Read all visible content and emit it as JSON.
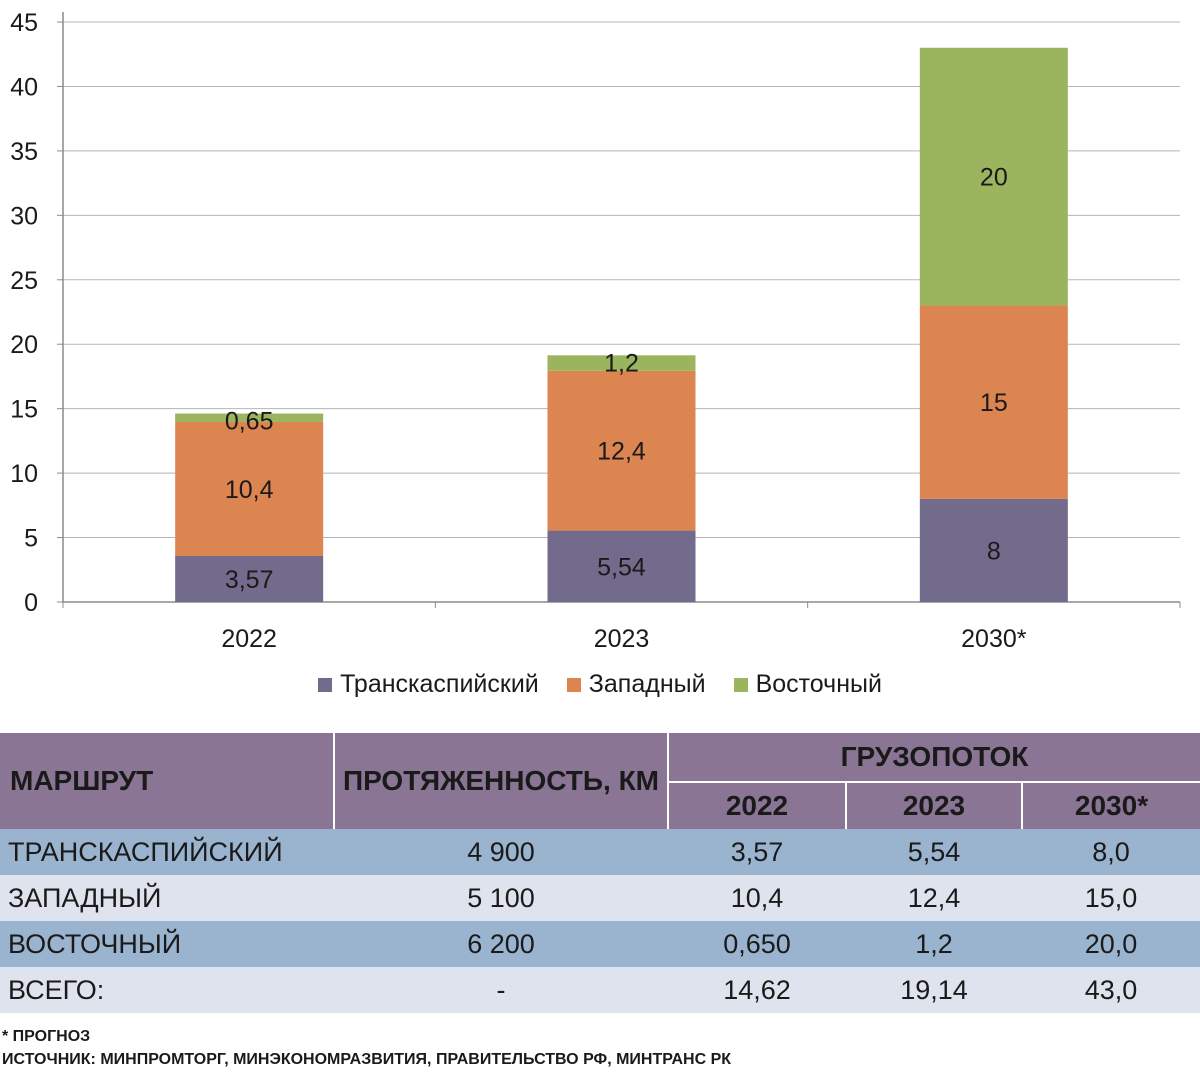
{
  "chart_data": {
    "type": "bar",
    "stacked": true,
    "categories": [
      "2022",
      "2023",
      "2030*"
    ],
    "series": [
      {
        "name": "Транскаспийский",
        "values": [
          3.57,
          5.54,
          8
        ],
        "labels": [
          "3,57",
          "5,54",
          "8"
        ],
        "color": "#736b8c"
      },
      {
        "name": "Западный",
        "values": [
          10.4,
          12.4,
          15
        ],
        "labels": [
          "10,4",
          "12,4",
          "15"
        ],
        "color": "#dd8550"
      },
      {
        "name": "Восточный",
        "values": [
          0.65,
          1.2,
          20
        ],
        "labels": [
          "0,65",
          "1,2",
          "20"
        ],
        "color": "#9bb55e"
      }
    ],
    "ylim": [
      0,
      45
    ],
    "yticks": [
      0,
      5,
      10,
      15,
      20,
      25,
      30,
      35,
      40,
      45
    ],
    "grid": true,
    "legend_position": "bottom"
  },
  "table": {
    "header": {
      "route": "МАРШРУТ",
      "length": "ПРОТЯЖЕННОСТЬ, КМ",
      "flow": "ГРУЗОПОТОК",
      "years": [
        "2022",
        "2023",
        "2030*"
      ]
    },
    "rows": [
      {
        "route": "ТРАНСКАСПИЙСКИЙ",
        "length": "4 900",
        "v2022": "3,57",
        "v2023": "5,54",
        "v2030": "8,0"
      },
      {
        "route": "ЗАПАДНЫЙ",
        "length": "5 100",
        "v2022": "10,4",
        "v2023": "12,4",
        "v2030": "15,0"
      },
      {
        "route": "ВОСТОЧНЫЙ",
        "length": "6 200",
        "v2022": "0,650",
        "v2023": "1,2",
        "v2030": "20,0"
      },
      {
        "route": "ВСЕГО:",
        "length": "-",
        "v2022": "14,62",
        "v2023": "19,14",
        "v2030": "43,0"
      }
    ]
  },
  "notes": {
    "forecast": "* ПРОГНОЗ",
    "source": "ИСТОЧНИК: МИНПРОМТОРГ, МИНЭКОНОМРАЗВИТИЯ, ПРАВИТЕЛЬСТВО РФ, МИНТРАНС РК"
  }
}
